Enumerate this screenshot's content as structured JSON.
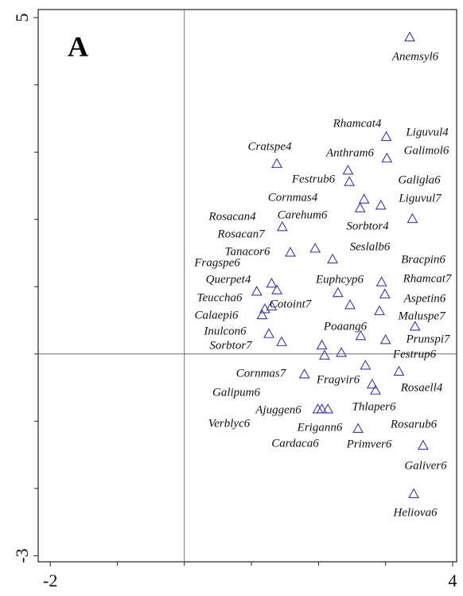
{
  "chart_data": {
    "type": "scatter",
    "title": "A",
    "xlim": [
      -2.18,
      4.06
    ],
    "ylim": [
      -3.09,
      5.12
    ],
    "xticks": [
      -2,
      4
    ],
    "yticks": [
      5,
      -3
    ],
    "minor_xticks": [
      -1,
      0,
      1,
      2,
      3
    ],
    "minor_yticks": [
      4,
      3,
      2,
      1,
      0,
      -1,
      -2
    ],
    "reference_lines": {
      "x": 0,
      "y": 0
    },
    "color": "#3a3aa0",
    "labels": [
      "Anemsyl6",
      "Rhamcat4",
      "Liguvul4",
      "Cratspe4",
      "Anthram6",
      "Galimol6",
      "Festrub6",
      "Galigla6",
      "Cornmas4",
      "Liguvul7",
      "Carehum6",
      "Rosacan4",
      "Sorbtor4",
      "Rosacan7",
      "Seslalb6",
      "Tanacor6",
      "Bracpin6",
      "Fragspe6",
      "Querpet4",
      "Euphcyp6",
      "Rhamcat7",
      "Teuccha6",
      "Cotoint7",
      "Aspetin6",
      "Calaepi6",
      "Maluspe7",
      "Poaang6",
      "Inulcon6",
      "Prunspi7",
      "Sorbtor7",
      "Festrup6",
      "Cornmas7",
      "Fragvir6",
      "Rosaell4",
      "Galipum6",
      "Thlaper6",
      "Ajuggen6",
      "Rosarub6",
      "Verblyc6",
      "Erigann6",
      "Cardaca6",
      "Primver6",
      "Galiver6",
      "Heliova6"
    ],
    "x": [
      3.36,
      2.44,
      3.01,
      1.38,
      2.46,
      3.02,
      2.68,
      3.4,
      2.62,
      2.93,
      1.95,
      1.46,
      2.21,
      1.58,
      2.94,
      1.3,
      2.99,
      1.08,
      1.38,
      2.29,
      2.91,
      1.2,
      1.3,
      2.63,
      1.16,
      3.44,
      2.47,
      1.26,
      3.0,
      1.45,
      2.34,
      1.79,
      2.7,
      3.2,
      2.05,
      2.8,
      2.05,
      2.85,
      2.14,
      2.59,
      1.99,
      2.09,
      3.56,
      3.42
    ],
    "y": [
      4.71,
      2.73,
      3.23,
      2.83,
      2.56,
      2.91,
      2.3,
      2.01,
      2.17,
      2.21,
      1.57,
      1.89,
      1.41,
      1.51,
      1.07,
      1.05,
      0.89,
      0.93,
      0.95,
      0.91,
      0.64,
      0.67,
      0.71,
      0.27,
      0.58,
      0.41,
      0.73,
      0.3,
      0.21,
      0.18,
      0.02,
      -0.3,
      -0.17,
      -0.26,
      0.13,
      -0.45,
      -0.82,
      -0.54,
      -0.82,
      -1.11,
      -0.82,
      -0.02,
      -1.36,
      -2.08
    ]
  }
}
